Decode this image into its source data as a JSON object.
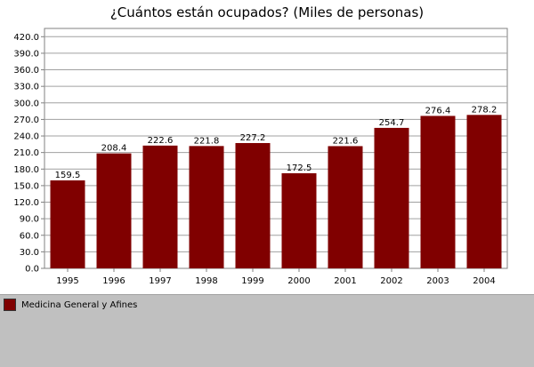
{
  "chart_data": {
    "type": "bar",
    "title": "¿Cuántos están ocupados? (Miles de personas)",
    "categories": [
      "1995",
      "1996",
      "1997",
      "1998",
      "1999",
      "2000",
      "2001",
      "2002",
      "2003",
      "2004"
    ],
    "series": [
      {
        "name": "Medicina General y Afines",
        "values": [
          159.5,
          208.4,
          222.6,
          221.8,
          227.2,
          172.5,
          221.6,
          254.7,
          276.4,
          278.2
        ],
        "value_labels": [
          "159.5",
          "208.4",
          "222.6",
          "221.8",
          "227.2",
          "172.5",
          "221.6",
          "254.7",
          "276.4",
          "278.2"
        ],
        "color": "#800000"
      }
    ],
    "yticks": [
      "0.0",
      "30.0",
      "60.0",
      "90.0",
      "120.0",
      "150.0",
      "180.0",
      "210.0",
      "240.0",
      "270.0",
      "300.0",
      "330.0",
      "360.0",
      "390.0",
      "420.0"
    ],
    "ylim": [
      0,
      435
    ],
    "grid": true,
    "legend_position": "bottom"
  }
}
